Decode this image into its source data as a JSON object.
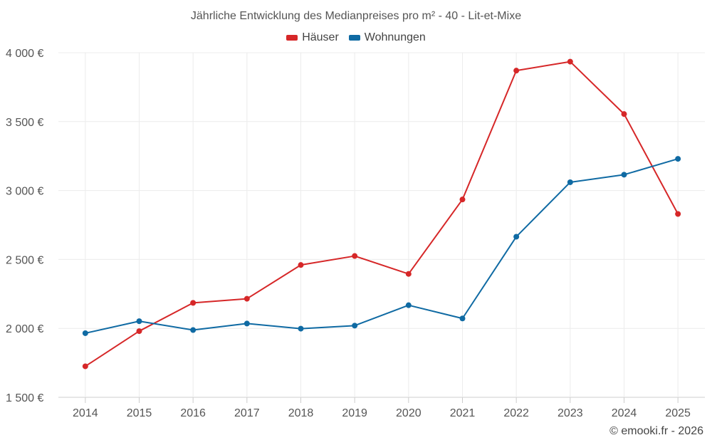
{
  "chart_data": {
    "type": "line",
    "title": "Jährliche Entwicklung des Medianpreises pro m² - 40 - Lit-et-Mixe",
    "categories": [
      "2014",
      "2015",
      "2016",
      "2017",
      "2018",
      "2019",
      "2020",
      "2021",
      "2022",
      "2023",
      "2024",
      "2025"
    ],
    "series": [
      {
        "name": "Häuser",
        "color": "#d62728",
        "values": [
          1725,
          1980,
          2185,
          2215,
          2460,
          2525,
          2395,
          2935,
          3870,
          3935,
          3555,
          2830
        ]
      },
      {
        "name": "Wohnungen",
        "color": "#0f6aa3",
        "values": [
          1965,
          2052,
          1988,
          2035,
          1998,
          2020,
          2168,
          2072,
          2665,
          3060,
          3115,
          3230
        ]
      }
    ],
    "ylim": [
      1500,
      4000
    ],
    "yticks": [
      1500,
      2000,
      2500,
      3000,
      3500,
      4000
    ],
    "ytick_labels": [
      "1 500 €",
      "2 000 €",
      "2 500 €",
      "3 000 €",
      "3 500 €",
      "4 000 €"
    ],
    "xlabel": "",
    "ylabel": "",
    "grid": true,
    "legend_position": "top-center"
  },
  "credit": "© emooki.fr - 2026"
}
